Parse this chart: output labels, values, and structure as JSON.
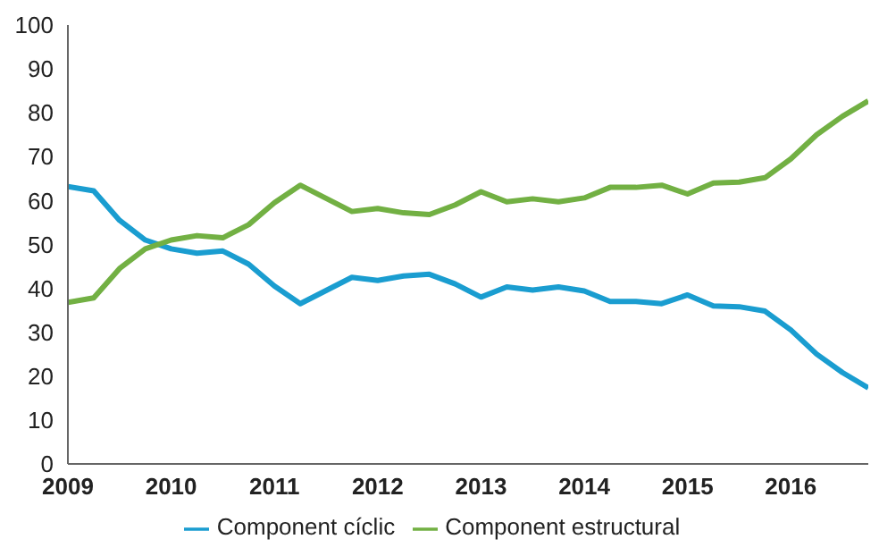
{
  "chart_data": {
    "type": "line",
    "x": [
      2009,
      2009.25,
      2009.5,
      2009.75,
      2010,
      2010.25,
      2010.5,
      2010.75,
      2011,
      2011.25,
      2011.5,
      2011.75,
      2012,
      2012.25,
      2012.5,
      2012.75,
      2013,
      2013.25,
      2013.5,
      2013.75,
      2014,
      2014.25,
      2014.5,
      2014.75,
      2015,
      2015.25,
      2015.5,
      2015.75,
      2016,
      2016.25,
      2016.5,
      2016.75
    ],
    "series": [
      {
        "name": "Component cíclic",
        "color": "#1a9dd0",
        "values": [
          63.2,
          62.2,
          55.5,
          51,
          49,
          48,
          48.5,
          45.5,
          40.5,
          36.5,
          39.5,
          42.5,
          41.8,
          42.8,
          43.2,
          41,
          38,
          40.3,
          39.6,
          40.3,
          39.4,
          37,
          37,
          36.5,
          38.5,
          36,
          35.8,
          34.8,
          30.5,
          25,
          20.8,
          17.3
        ]
      },
      {
        "name": "Component estructural",
        "color": "#72b043",
        "values": [
          36.8,
          37.8,
          44.5,
          49,
          51,
          52,
          51.5,
          54.5,
          59.5,
          63.5,
          60.5,
          57.5,
          58.2,
          57.2,
          56.8,
          59,
          62,
          59.7,
          60.4,
          59.7,
          60.6,
          63,
          63,
          63.5,
          61.5,
          64,
          64.2,
          65.2,
          69.5,
          75,
          79.2,
          82.7
        ]
      }
    ],
    "xlim": [
      2009,
      2016.75
    ],
    "xticks": [
      2009,
      2010,
      2011,
      2012,
      2013,
      2014,
      2015,
      2016
    ],
    "ylim": [
      0,
      100
    ],
    "yticks": [
      0,
      10,
      20,
      30,
      40,
      50,
      60,
      70,
      80,
      90,
      100
    ],
    "grid": false,
    "legend": "bottom",
    "marker": "none",
    "line_style": "solid"
  }
}
